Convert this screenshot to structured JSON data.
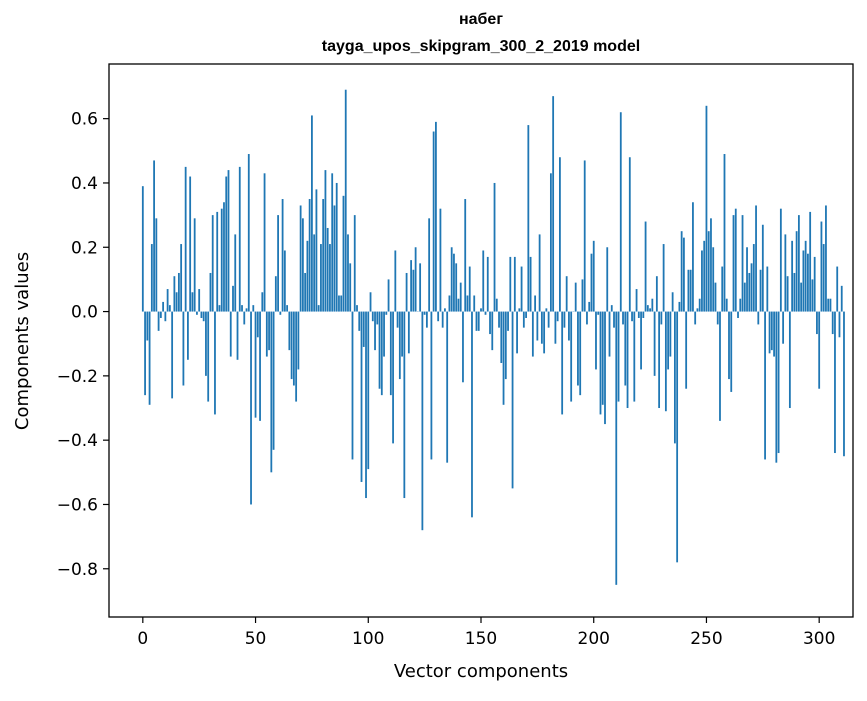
{
  "chart_data": {
    "type": "bar",
    "title": "набег",
    "subtitle": "tayga_upos_skipgram_300_2_2019 model",
    "xlabel": "Vector components",
    "ylabel": "Components values",
    "xlim": [
      -15,
      315
    ],
    "ylim": [
      -0.95,
      0.77
    ],
    "x_ticks": [
      0,
      50,
      100,
      150,
      200,
      250,
      300
    ],
    "x_tick_labels": [
      "0",
      "50",
      "100",
      "150",
      "200",
      "250",
      "300"
    ],
    "y_ticks": [
      -0.8,
      -0.6,
      -0.4,
      -0.2,
      0.0,
      0.2,
      0.4,
      0.6
    ],
    "y_tick_labels": [
      "−0.8",
      "−0.6",
      "−0.4",
      "−0.2",
      "0.0",
      "0.2",
      "0.4",
      "0.6"
    ],
    "grid": false,
    "bar_color": "#1f77b4",
    "values": [
      0.39,
      -0.26,
      -0.09,
      -0.29,
      0.21,
      0.47,
      0.29,
      -0.06,
      -0.02,
      0.03,
      -0.03,
      0.07,
      0.02,
      -0.27,
      0.11,
      0.06,
      0.12,
      0.21,
      -0.23,
      0.45,
      -0.15,
      0.42,
      0.06,
      0.29,
      -0.01,
      0.07,
      -0.02,
      -0.03,
      -0.2,
      -0.28,
      0.12,
      0.3,
      -0.32,
      0.31,
      0.02,
      0.32,
      0.34,
      0.42,
      0.44,
      -0.14,
      0.08,
      0.24,
      -0.15,
      0.45,
      0.02,
      -0.04,
      0.01,
      0.49,
      -0.6,
      0.02,
      -0.33,
      -0.08,
      -0.34,
      0.06,
      0.43,
      -0.14,
      -0.12,
      -0.5,
      -0.43,
      0.11,
      0.3,
      -0.01,
      0.35,
      0.19,
      0.02,
      -0.12,
      -0.21,
      -0.23,
      -0.28,
      -0.18,
      0.33,
      0.29,
      0.12,
      0.22,
      0.35,
      0.61,
      0.24,
      0.38,
      0.02,
      0.21,
      0.35,
      0.44,
      0.26,
      0.21,
      0.43,
      0.33,
      0.4,
      0.05,
      0.05,
      0.36,
      0.69,
      0.24,
      0.15,
      -0.46,
      0.3,
      0.02,
      -0.06,
      -0.53,
      -0.11,
      -0.58,
      -0.49,
      0.06,
      -0.03,
      -0.12,
      -0.04,
      -0.24,
      -0.26,
      -0.14,
      -0.01,
      0.1,
      -0.26,
      -0.41,
      0.19,
      -0.05,
      -0.21,
      -0.14,
      -0.58,
      0.12,
      -0.13,
      0.16,
      0.13,
      0.2,
      0.0,
      0.15,
      -0.68,
      -0.01,
      -0.05,
      0.29,
      -0.46,
      0.56,
      0.59,
      -0.03,
      0.32,
      -0.05,
      0.01,
      -0.47,
      0.05,
      0.2,
      0.18,
      0.15,
      0.04,
      0.09,
      -0.22,
      0.35,
      0.05,
      0.14,
      -0.64,
      0.05,
      -0.06,
      -0.06,
      0.01,
      0.19,
      -0.01,
      0.17,
      -0.07,
      -0.12,
      0.4,
      0.04,
      -0.05,
      -0.16,
      -0.29,
      -0.21,
      -0.06,
      0.17,
      -0.55,
      0.17,
      -0.13,
      0.01,
      0.14,
      -0.05,
      -0.02,
      0.58,
      0.17,
      -0.14,
      0.05,
      -0.09,
      0.24,
      -0.1,
      -0.13,
      0.01,
      -0.05,
      0.43,
      0.67,
      -0.1,
      -0.03,
      0.48,
      -0.32,
      -0.05,
      0.11,
      -0.09,
      -0.28,
      0.0,
      0.09,
      -0.23,
      -0.26,
      0.1,
      0.47,
      -0.04,
      0.03,
      0.18,
      0.22,
      -0.18,
      -0.01,
      -0.32,
      -0.29,
      -0.35,
      0.2,
      -0.14,
      0.02,
      -0.05,
      -0.85,
      -0.28,
      0.62,
      -0.04,
      -0.23,
      -0.3,
      0.48,
      -0.03,
      -0.28,
      0.07,
      -0.02,
      -0.18,
      -0.02,
      0.28,
      0.02,
      0.01,
      0.04,
      -0.2,
      0.11,
      -0.3,
      -0.04,
      0.21,
      -0.31,
      -0.18,
      -0.14,
      0.06,
      -0.41,
      -0.78,
      0.03,
      0.25,
      0.23,
      -0.24,
      0.13,
      0.13,
      0.34,
      -0.04,
      0.01,
      0.04,
      0.19,
      0.22,
      0.64,
      0.25,
      0.29,
      0.2,
      0.09,
      -0.04,
      -0.34,
      0.14,
      0.49,
      0.04,
      -0.21,
      -0.25,
      0.3,
      0.32,
      -0.02,
      0.04,
      0.3,
      0.09,
      0.2,
      0.12,
      0.15,
      0.21,
      0.33,
      -0.04,
      0.13,
      0.27,
      -0.46,
      0.14,
      -0.13,
      -0.12,
      -0.14,
      -0.47,
      -0.44,
      0.32,
      -0.1,
      0.24,
      0.11,
      -0.3,
      0.22,
      0.12,
      0.25,
      0.3,
      0.09,
      0.19,
      0.22,
      0.18,
      0.31,
      0.1,
      0.17,
      -0.07,
      -0.24,
      0.28,
      0.21,
      0.33,
      0.04,
      0.04,
      -0.07,
      -0.44,
      0.14,
      -0.08,
      0.08,
      -0.45
    ]
  }
}
